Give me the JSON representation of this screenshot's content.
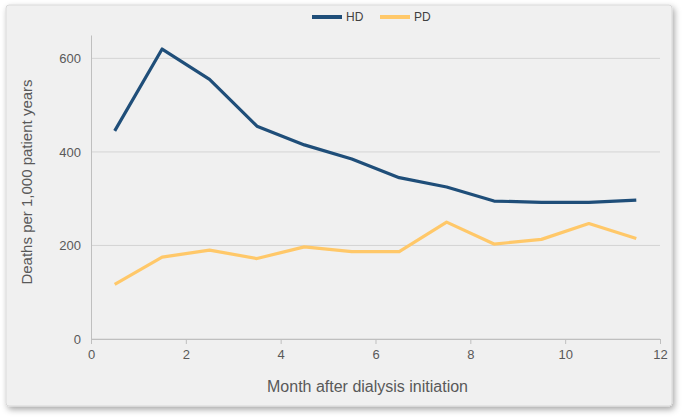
{
  "chart_data": {
    "type": "line",
    "x_label": "Month after dialysis initiation",
    "y_label": "Deaths per 1,000 patient years",
    "x": [
      0.5,
      1.5,
      2.5,
      3.5,
      4.5,
      5.5,
      6.5,
      7.5,
      8.5,
      9.5,
      10.5,
      11.5
    ],
    "series": [
      {
        "name": "HD",
        "color": "#1f4e79",
        "values": [
          445,
          620,
          555,
          455,
          415,
          385,
          345,
          325,
          295,
          292,
          292,
          297
        ]
      },
      {
        "name": "PD",
        "color": "#ffc869",
        "values": [
          117,
          175,
          190,
          172,
          197,
          187,
          187,
          250,
          203,
          213,
          247,
          215
        ]
      }
    ],
    "xlim": [
      0,
      12
    ],
    "xticks": [
      0,
      2,
      4,
      6,
      8,
      10,
      12
    ],
    "ylim": [
      0,
      650
    ],
    "yticks": [
      0,
      200,
      400,
      600
    ],
    "grid": true,
    "legend": "top"
  }
}
